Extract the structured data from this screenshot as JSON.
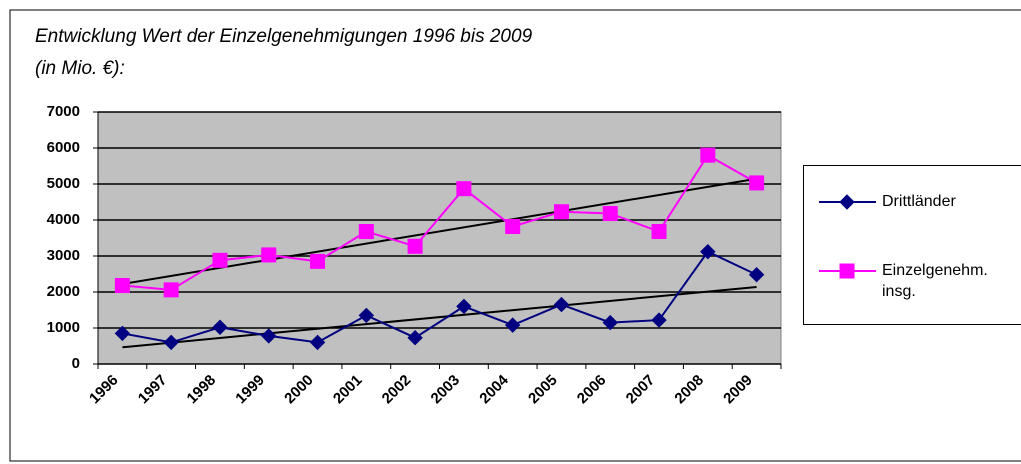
{
  "chart_data": {
    "type": "line",
    "title": "Entwicklung Wert der Einzelgenehmigungen 1996 bis 2009",
    "subtitle": "(in Mio. €):",
    "categories": [
      "1996",
      "1997",
      "1998",
      "1999",
      "2000",
      "2001",
      "2002",
      "2003",
      "2004",
      "2005",
      "2006",
      "2007",
      "2008",
      "2009"
    ],
    "series": [
      {
        "name": "Drittländer",
        "color": "#000080",
        "marker": "diamond",
        "values": [
          850,
          600,
          1020,
          780,
          600,
          1350,
          730,
          1600,
          1080,
          1650,
          1150,
          1220,
          3120,
          2480
        ]
      },
      {
        "name": "Einzelgenehm. insg.",
        "color": "#ff00ff",
        "marker": "square",
        "values": [
          2180,
          2060,
          2880,
          3030,
          2850,
          3680,
          3270,
          4870,
          3820,
          4230,
          4180,
          3680,
          5800,
          5030
        ]
      }
    ],
    "ylim": [
      0,
      7000
    ],
    "yticks": [
      0,
      1000,
      2000,
      3000,
      4000,
      5000,
      6000,
      7000
    ],
    "grid": true,
    "trendline": true,
    "legend": "right"
  }
}
